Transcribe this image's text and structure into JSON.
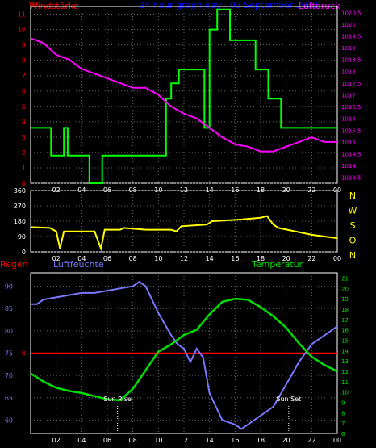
{
  "chart_data": [
    {
      "type": "line",
      "panel": "wind-pressure",
      "title": "24 hour graph day : 03 September 2013",
      "left_label": "Windstärke",
      "right_label": "Luftdruck",
      "x_ticks": [
        "02",
        "04",
        "06",
        "08",
        "10",
        "12",
        "14",
        "16",
        "18",
        "20",
        "22",
        "00"
      ],
      "y_left_ticks": [
        "0",
        "1",
        "2",
        "3",
        "4",
        "5",
        "6",
        "7",
        "8",
        "9",
        "10",
        "11"
      ],
      "y_right_ticks": [
        "1013.5",
        "1014",
        "1014.5",
        "1015",
        "1015.5",
        "1016",
        "1016.5",
        "1017",
        "1017.5",
        "1018",
        "1018.5",
        "1019",
        "1019.5",
        "1020",
        "1020.5"
      ],
      "ylim_left": [
        0,
        11.5
      ],
      "ylim_right": [
        1013.25,
        1020.75
      ],
      "grid": true,
      "colors": {
        "windstaerke": "#00ff00",
        "luftdruck": "#ff00ff",
        "title": "#0000ff",
        "left_label": "#ff0000",
        "right_label": "#ff00ff"
      },
      "series": [
        {
          "name": "Windstärke",
          "x": [
            0,
            1.6,
            1.6,
            2.6,
            2.6,
            2.9,
            2.9,
            3.3,
            3.3,
            4.6,
            4.6,
            5.6,
            5.6,
            6.6,
            6.6,
            10.6,
            10.6,
            11.0,
            11.0,
            11.6,
            11.6,
            13.6,
            13.6,
            14.0,
            14.0,
            14.6,
            14.6,
            15.6,
            15.6,
            17.6,
            17.6,
            18.6,
            18.6,
            19.6,
            19.6,
            24.0
          ],
          "y": [
            3.6,
            3.6,
            1.8,
            1.8,
            3.6,
            3.6,
            1.8,
            1.8,
            1.8,
            1.8,
            0,
            0,
            1.8,
            1.8,
            1.8,
            1.8,
            5.5,
            5.5,
            6.5,
            6.5,
            7.4,
            7.4,
            3.6,
            3.6,
            10,
            10,
            11.3,
            11.3,
            9.3,
            9.3,
            7.4,
            7.4,
            5.5,
            5.5,
            3.6,
            3.6
          ]
        },
        {
          "name": "Luftdruck",
          "x": [
            0,
            1,
            2,
            3,
            4,
            5,
            6,
            7,
            8,
            9,
            10,
            11,
            12,
            13,
            14,
            15,
            16,
            17,
            18,
            19,
            20,
            21,
            22,
            23,
            24
          ],
          "y": [
            1019.4,
            1019.2,
            1018.7,
            1018.5,
            1018.1,
            1017.9,
            1017.7,
            1017.5,
            1017.3,
            1017.3,
            1017.0,
            1016.5,
            1016.2,
            1016.0,
            1015.6,
            1015.2,
            1014.9,
            1014.8,
            1014.6,
            1014.6,
            1014.8,
            1015.0,
            1015.2,
            1015.0,
            1015.0
          ]
        }
      ]
    },
    {
      "type": "line",
      "panel": "wind-direction",
      "x_ticks": [
        "02",
        "04",
        "06",
        "08",
        "10",
        "12",
        "14",
        "16",
        "18",
        "20",
        "22",
        "00"
      ],
      "y_ticks": [
        "0",
        "90",
        "180",
        "270",
        "360"
      ],
      "ylim": [
        0,
        360
      ],
      "direction_labels": [
        "N",
        "W",
        "S",
        "O",
        "N"
      ],
      "grid": true,
      "colors": {
        "windrichtung": "#ffff00",
        "direction_labels": "#ffff00"
      },
      "series": [
        {
          "x": [
            0,
            1.5,
            2.0,
            2.3,
            2.6,
            5.0,
            5.5,
            5.8,
            7.0,
            7.3,
            9.0,
            11.0,
            11.4,
            11.8,
            13.8,
            14.2,
            15.5,
            16.5,
            18.0,
            18.5,
            19.0,
            19.4,
            22.0,
            24.0
          ],
          "y": [
            145,
            140,
            120,
            20,
            120,
            120,
            20,
            130,
            130,
            140,
            130,
            130,
            120,
            150,
            160,
            180,
            185,
            190,
            200,
            210,
            160,
            140,
            100,
            80
          ]
        }
      ]
    },
    {
      "type": "line",
      "panel": "humidity-temperature",
      "left_label": "Regen",
      "luftfeuchte_label": "Luftfeuchte",
      "temperatur_label": "Temperatur",
      "x_ticks": [
        "02",
        "04",
        "06",
        "08",
        "10",
        "12",
        "14",
        "16",
        "18",
        "20",
        "22",
        "00"
      ],
      "y_left_ticks": [
        "60",
        "65",
        "70",
        "75",
        "80",
        "85",
        "90"
      ],
      "y_right_ticks": [
        "6",
        "7",
        "8",
        "9",
        "10",
        "11",
        "12",
        "13",
        "14",
        "15",
        "16",
        "17",
        "18",
        "19",
        "20",
        "21"
      ],
      "ylim_left": [
        57,
        93
      ],
      "ylim_right": [
        6,
        21.5
      ],
      "rain_left_label": "0",
      "rain_value": 0,
      "annotations": [
        {
          "text": "Sun Rise",
          "x": 6.8
        },
        {
          "text": "Sun Set",
          "x": 20.2
        }
      ],
      "grid": true,
      "colors": {
        "luftfeuchte": "#7777ff",
        "temperatur": "#00dd00",
        "regen": "#ff0000"
      },
      "series": [
        {
          "name": "Luftfeuchte",
          "x": [
            0,
            0.5,
            1,
            2,
            3,
            4,
            5,
            6,
            7,
            8,
            8.5,
            9,
            10,
            11,
            11.5,
            12,
            12.5,
            13,
            13.5,
            14,
            15,
            16,
            16.5,
            17,
            18,
            18.5,
            19,
            20,
            21,
            22,
            23,
            24
          ],
          "y": [
            86,
            86,
            87,
            87.5,
            88,
            88.5,
            88.5,
            89,
            89.5,
            90,
            91,
            90,
            84,
            79,
            77,
            76,
            73,
            76,
            74,
            66,
            60,
            59,
            58,
            59,
            61,
            62,
            63,
            68,
            73,
            77,
            79,
            81
          ]
        },
        {
          "name": "Temperatur",
          "x": [
            0,
            1,
            2,
            3,
            4,
            5,
            6,
            7,
            8,
            9,
            10,
            11,
            12,
            13,
            14,
            15,
            16,
            17,
            18,
            19,
            20,
            21,
            22,
            23,
            24
          ],
          "y": [
            11.8,
            11.0,
            10.4,
            10.1,
            9.9,
            9.6,
            9.3,
            9.2,
            10.3,
            12.1,
            13.9,
            14.6,
            15.5,
            16.0,
            17.5,
            18.7,
            19.0,
            18.9,
            18.2,
            17.3,
            16.2,
            14.7,
            13.4,
            12.6,
            12.0
          ]
        }
      ]
    }
  ]
}
